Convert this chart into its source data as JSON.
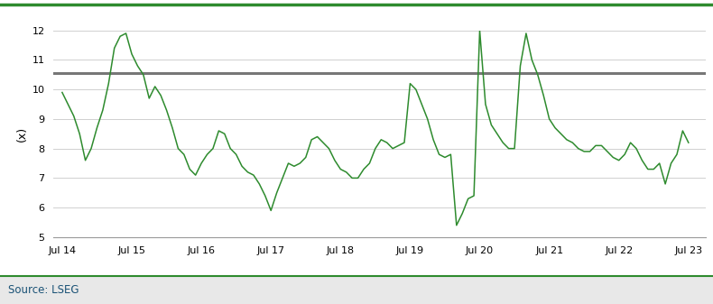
{
  "ylabel": "(x)",
  "ylim": [
    5.0,
    12.0
  ],
  "yticks": [
    5.0,
    6.0,
    7.0,
    8.0,
    9.0,
    10.0,
    11.0,
    12.0
  ],
  "avg_pe": 10.55,
  "line_color": "#2e8b2e",
  "avg_color": "#777777",
  "background_color": "#ffffff",
  "source_bg_color": "#e8e8e8",
  "source_text": "Source: LSEG",
  "source_color": "#1a5276",
  "top_border_color": "#2e8b2e",
  "x_labels": [
    "Jul 14",
    "Jul 15",
    "Jul 16",
    "Jul 17",
    "Jul 18",
    "Jul 19",
    "Jul 20",
    "Jul 21",
    "Jul 22",
    "Jul 23"
  ],
  "x_positions": [
    0,
    12,
    24,
    36,
    48,
    60,
    72,
    84,
    96,
    108
  ],
  "pe_data": [
    [
      0,
      9.9
    ],
    [
      1,
      9.5
    ],
    [
      2,
      9.1
    ],
    [
      3,
      8.5
    ],
    [
      4,
      7.6
    ],
    [
      5,
      8.0
    ],
    [
      6,
      8.7
    ],
    [
      7,
      9.3
    ],
    [
      8,
      10.2
    ],
    [
      9,
      11.4
    ],
    [
      10,
      11.8
    ],
    [
      11,
      11.9
    ],
    [
      12,
      11.2
    ],
    [
      13,
      10.8
    ],
    [
      14,
      10.5
    ],
    [
      15,
      9.7
    ],
    [
      16,
      10.1
    ],
    [
      17,
      9.8
    ],
    [
      18,
      9.3
    ],
    [
      19,
      8.7
    ],
    [
      20,
      8.0
    ],
    [
      21,
      7.8
    ],
    [
      22,
      7.3
    ],
    [
      23,
      7.1
    ],
    [
      24,
      7.5
    ],
    [
      25,
      7.8
    ],
    [
      26,
      8.0
    ],
    [
      27,
      8.6
    ],
    [
      28,
      8.5
    ],
    [
      29,
      8.0
    ],
    [
      30,
      7.8
    ],
    [
      31,
      7.4
    ],
    [
      32,
      7.2
    ],
    [
      33,
      7.1
    ],
    [
      34,
      6.8
    ],
    [
      35,
      6.4
    ],
    [
      36,
      5.9
    ],
    [
      37,
      6.5
    ],
    [
      38,
      7.0
    ],
    [
      39,
      7.5
    ],
    [
      40,
      7.4
    ],
    [
      41,
      7.5
    ],
    [
      42,
      7.7
    ],
    [
      43,
      8.3
    ],
    [
      44,
      8.4
    ],
    [
      45,
      8.2
    ],
    [
      46,
      8.0
    ],
    [
      47,
      7.6
    ],
    [
      48,
      7.3
    ],
    [
      49,
      7.2
    ],
    [
      50,
      7.0
    ],
    [
      51,
      7.0
    ],
    [
      52,
      7.3
    ],
    [
      53,
      7.5
    ],
    [
      54,
      8.0
    ],
    [
      55,
      8.3
    ],
    [
      56,
      8.2
    ],
    [
      57,
      8.0
    ],
    [
      58,
      8.1
    ],
    [
      59,
      8.2
    ],
    [
      60,
      10.2
    ],
    [
      61,
      10.0
    ],
    [
      62,
      9.5
    ],
    [
      63,
      9.0
    ],
    [
      64,
      8.3
    ],
    [
      65,
      7.8
    ],
    [
      66,
      7.7
    ],
    [
      67,
      7.8
    ],
    [
      68,
      5.4
    ],
    [
      69,
      5.8
    ],
    [
      70,
      6.3
    ],
    [
      71,
      6.4
    ],
    [
      72,
      12.0
    ],
    [
      73,
      9.5
    ],
    [
      74,
      8.8
    ],
    [
      75,
      8.5
    ],
    [
      76,
      8.2
    ],
    [
      77,
      8.0
    ],
    [
      78,
      8.0
    ],
    [
      79,
      10.8
    ],
    [
      80,
      11.9
    ],
    [
      81,
      11.0
    ],
    [
      82,
      10.5
    ],
    [
      83,
      9.8
    ],
    [
      84,
      9.0
    ],
    [
      85,
      8.7
    ],
    [
      86,
      8.5
    ],
    [
      87,
      8.3
    ],
    [
      88,
      8.2
    ],
    [
      89,
      8.0
    ],
    [
      90,
      7.9
    ],
    [
      91,
      7.9
    ],
    [
      92,
      8.1
    ],
    [
      93,
      8.1
    ],
    [
      94,
      7.9
    ],
    [
      95,
      7.7
    ],
    [
      96,
      7.6
    ],
    [
      97,
      7.8
    ],
    [
      98,
      8.2
    ],
    [
      99,
      8.0
    ],
    [
      100,
      7.6
    ],
    [
      101,
      7.3
    ],
    [
      102,
      7.3
    ],
    [
      103,
      7.5
    ],
    [
      104,
      6.8
    ],
    [
      105,
      7.5
    ],
    [
      106,
      7.8
    ],
    [
      107,
      8.6
    ],
    [
      108,
      8.2
    ]
  ]
}
